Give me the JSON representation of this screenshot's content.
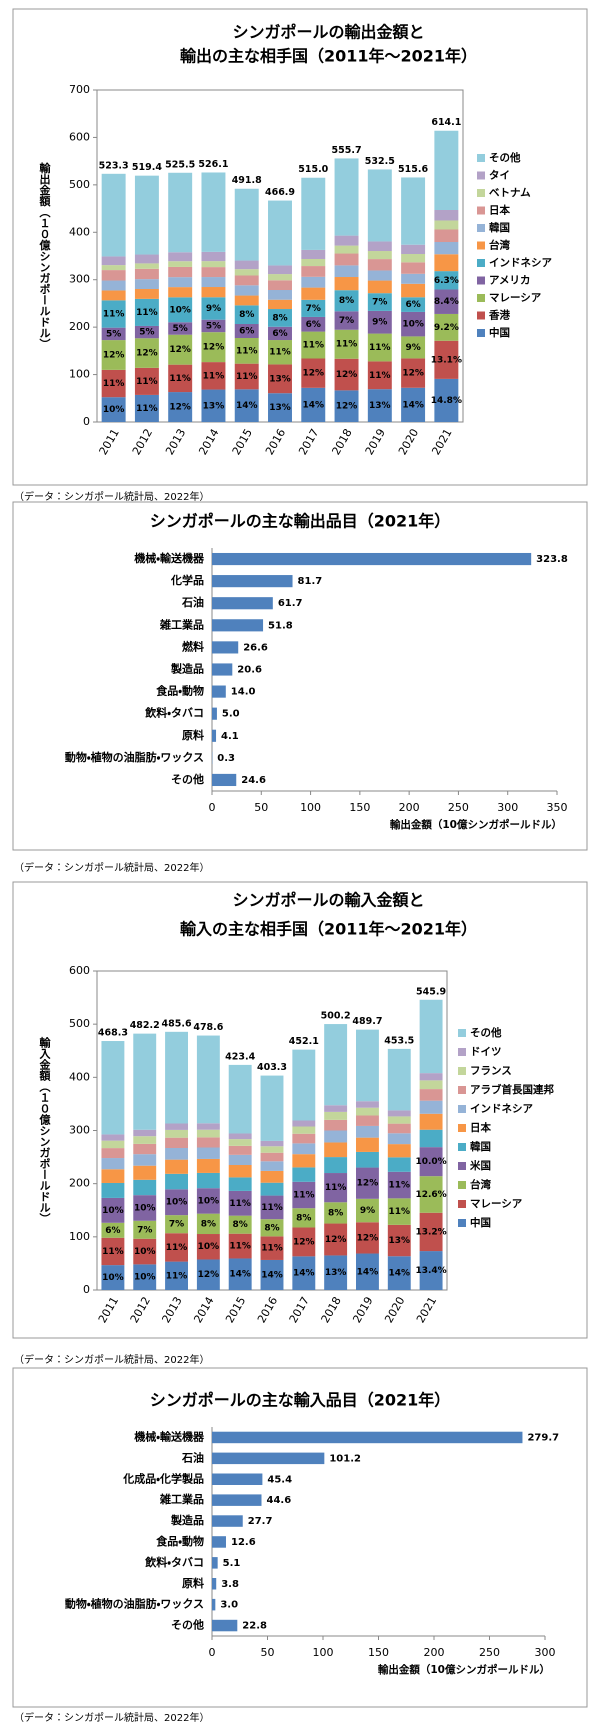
{
  "chart_data": [
    {
      "type": "stacked_bar",
      "title": [
        "シンガポールの輸出金額と",
        "輸出の主な相手国（2011年～2021年）"
      ],
      "y_label": "輸出金額（１０億シンガポールドル）",
      "categories": [
        "2011",
        "2012",
        "2013",
        "2014",
        "2015",
        "2016",
        "2017",
        "2018",
        "2019",
        "2020",
        "2021"
      ],
      "series": [
        {
          "name": "中国",
          "color": "#4F81BD",
          "values": [
            52.3,
            57.1,
            63.1,
            68.4,
            68.9,
            60.7,
            72.1,
            66.7,
            69.2,
            72.2,
            90.9
          ],
          "share_labels": [
            "10%",
            "11%",
            "12%",
            "13%",
            "14%",
            "13%",
            "14%",
            "12%",
            "13%",
            "14%",
            "14.8%"
          ]
        },
        {
          "name": "香港",
          "color": "#C0504D",
          "values": [
            57.6,
            57.1,
            57.8,
            57.9,
            54.1,
            60.7,
            61.8,
            66.7,
            58.6,
            61.9,
            80.4
          ],
          "share_labels": [
            "11%",
            "11%",
            "11%",
            "11%",
            "11%",
            "13%",
            "12%",
            "12%",
            "11%",
            "12%",
            "13.1%"
          ]
        },
        {
          "name": "マレーシア",
          "color": "#9BBB59",
          "values": [
            62.8,
            62.3,
            63.1,
            63.1,
            54.1,
            51.4,
            56.7,
            61.1,
            58.6,
            46.4,
            56.5
          ],
          "share_labels": [
            "12%",
            "12%",
            "12%",
            "12%",
            "11%",
            "11%",
            "11%",
            "11%",
            "11%",
            "9%",
            "9.2%"
          ]
        },
        {
          "name": "アメリカ",
          "color": "#8064A2",
          "values": [
            26.2,
            26.0,
            26.3,
            26.3,
            29.5,
            28.0,
            30.9,
            38.9,
            47.9,
            51.6,
            51.6
          ],
          "share_labels": [
            "5%",
            "5%",
            "5%",
            "5%",
            "6%",
            "6%",
            "6%",
            "7%",
            "9%",
            "10%",
            "8.4%"
          ]
        },
        {
          "name": "インドネシア",
          "color": "#4BACC6",
          "values": [
            57.6,
            57.1,
            52.6,
            47.3,
            39.3,
            37.4,
            36.1,
            44.5,
            37.3,
            30.9,
            38.7
          ],
          "share_labels": [
            "11%",
            "11%",
            "10%",
            "9%",
            "8%",
            "8%",
            "7%",
            "8%",
            "7%",
            "6%",
            "6.3%"
          ]
        },
        {
          "name": "台湾",
          "color": "#F79646",
          "values": [
            20.9,
            20.8,
            21.5,
            21.6,
            20.7,
            19.6,
            25.8,
            27.8,
            26.6,
            28.4,
            35.6
          ]
        },
        {
          "name": "韓国",
          "color": "#95B3D7",
          "values": [
            20.9,
            20.8,
            21.0,
            21.0,
            21.6,
            20.5,
            22.7,
            24.5,
            21.3,
            21.1,
            25.8
          ]
        },
        {
          "name": "日本",
          "color": "#D99694",
          "values": [
            22.0,
            21.8,
            21.5,
            21.0,
            20.7,
            20.5,
            22.7,
            25.0,
            24.0,
            24.2,
            26.4
          ]
        },
        {
          "name": "ベトナム",
          "color": "#C3D69B",
          "values": [
            10.5,
            11.4,
            12.1,
            12.6,
            13.3,
            13.1,
            14.9,
            16.7,
            17.0,
            17.5,
            19.0
          ]
        },
        {
          "name": "タイ",
          "color": "#B3A2C7",
          "values": [
            18.3,
            18.7,
            18.9,
            19.5,
            18.2,
            18.2,
            19.1,
            21.1,
            20.2,
            19.6,
            22.1
          ]
        },
        {
          "name": "その他",
          "color": "#93CDDD",
          "values": [
            174.2,
            166.3,
            167.6,
            167.4,
            151.4,
            136.8,
            152.2,
            162.7,
            151.8,
            141.8,
            167.1
          ]
        }
      ],
      "totals": [
        523.3,
        519.4,
        525.5,
        526.1,
        491.8,
        466.9,
        515.0,
        555.7,
        532.5,
        515.6,
        614.1
      ],
      "total_labels": [
        "523.3",
        "519.4",
        "525.5",
        "526.1",
        "491.8",
        "466.9",
        "515.0",
        "555.7",
        "532.5",
        "515.6",
        "614.1"
      ],
      "ylim": [
        0,
        700
      ],
      "yticks": [
        0,
        100,
        200,
        300,
        400,
        500,
        600,
        700
      ],
      "source": "（データ：シンガポール統計局、2022年）"
    },
    {
      "type": "hbar",
      "title": "シンガポールの主な輸出品目（2021年）",
      "categories": [
        "機械・輸送機器",
        "化学品",
        "石油",
        "雑工業品",
        "燃料",
        "製造品",
        "食品・動物",
        "飲料・タバコ",
        "原料",
        "動物・植物の油脂肪・ワックス",
        "その他"
      ],
      "values": [
        323.8,
        81.7,
        61.7,
        51.8,
        26.6,
        20.6,
        14.0,
        5.0,
        4.1,
        0.3,
        24.6
      ],
      "value_labels": [
        "323.8",
        "81.7",
        "61.7",
        "51.8",
        "26.6",
        "20.6",
        "14.0",
        "5.0",
        "4.1",
        "0.3",
        "24.6"
      ],
      "color": "#4F81BD",
      "xlim": [
        0,
        350
      ],
      "xticks": [
        0,
        50,
        100,
        150,
        200,
        250,
        300,
        350
      ],
      "x_label": "輸出金額（10億シンガポールドル）",
      "source": "（データ：シンガポール統計局、2022年）"
    },
    {
      "type": "stacked_bar",
      "title": [
        "シンガポールの輸入金額と",
        "輸入の主な相手国（2011年～2021年）"
      ],
      "y_label": "輸入金額（１０億シンガポールドル）",
      "categories": [
        "2011",
        "2012",
        "2013",
        "2014",
        "2015",
        "2016",
        "2017",
        "2018",
        "2019",
        "2020",
        "2021"
      ],
      "series": [
        {
          "name": "中国",
          "color": "#4F81BD",
          "values": [
            46.8,
            48.2,
            53.4,
            57.4,
            59.3,
            56.5,
            63.3,
            65.0,
            68.6,
            63.5,
            73.2
          ],
          "share_labels": [
            "10%",
            "10%",
            "11%",
            "12%",
            "14%",
            "14%",
            "14%",
            "13%",
            "14%",
            "14%",
            "13.4%"
          ]
        },
        {
          "name": "マレーシア",
          "color": "#C0504D",
          "values": [
            51.5,
            48.2,
            53.4,
            47.9,
            46.6,
            44.4,
            54.3,
            60.0,
            58.8,
            59.0,
            72.1
          ],
          "share_labels": [
            "11%",
            "10%",
            "11%",
            "10%",
            "11%",
            "11%",
            "12%",
            "12%",
            "12%",
            "13%",
            "13.2%"
          ]
        },
        {
          "name": "台湾",
          "color": "#9BBB59",
          "values": [
            28.1,
            33.8,
            34.0,
            38.3,
            33.9,
            32.3,
            36.2,
            40.0,
            44.1,
            49.9,
            68.8
          ],
          "share_labels": [
            "6%",
            "7%",
            "7%",
            "8%",
            "8%",
            "8%",
            "8%",
            "8%",
            "9%",
            "11%",
            "12.6%"
          ]
        },
        {
          "name": "米国",
          "color": "#8064A2",
          "values": [
            46.8,
            48.2,
            48.6,
            47.9,
            46.6,
            44.4,
            49.7,
            55.0,
            58.8,
            49.9,
            54.6
          ],
          "share_labels": [
            "10%",
            "10%",
            "10%",
            "10%",
            "11%",
            "11%",
            "11%",
            "11%",
            "12%",
            "11%",
            "10.0%"
          ]
        },
        {
          "name": "韓国",
          "color": "#4BACC6",
          "values": [
            28.1,
            28.9,
            29.1,
            28.7,
            25.4,
            24.2,
            27.1,
            30.0,
            29.4,
            27.2,
            32.8
          ]
        },
        {
          "name": "日本",
          "color": "#F79646",
          "values": [
            25.8,
            26.5,
            26.7,
            26.3,
            23.3,
            22.2,
            24.9,
            27.5,
            26.9,
            24.9,
            30.0
          ]
        },
        {
          "name": "インドネシア",
          "color": "#95B3D7",
          "values": [
            21.1,
            21.7,
            21.9,
            21.5,
            19.1,
            18.1,
            20.3,
            22.5,
            22.0,
            20.4,
            24.6
          ]
        },
        {
          "name": "アラブ首長国連邦",
          "color": "#D99694",
          "values": [
            18.7,
            19.3,
            19.4,
            19.1,
            16.9,
            16.1,
            18.1,
            20.0,
            19.6,
            18.1,
            21.8
          ]
        },
        {
          "name": "フランス",
          "color": "#C3D69B",
          "values": [
            14.0,
            14.5,
            14.6,
            14.4,
            12.7,
            12.1,
            13.6,
            15.0,
            14.7,
            13.6,
            16.4
          ]
        },
        {
          "name": "ドイツ",
          "color": "#B3A2C7",
          "values": [
            11.7,
            12.1,
            12.1,
            12.0,
            10.6,
            10.1,
            11.3,
            12.5,
            12.2,
            11.3,
            13.6
          ]
        },
        {
          "name": "その他",
          "color": "#93CDDD",
          "values": [
            175.7,
            180.8,
            172.4,
            165.1,
            129.0,
            122.9,
            133.3,
            152.7,
            134.6,
            115.7,
            138.0
          ]
        }
      ],
      "totals": [
        468.3,
        482.2,
        485.6,
        478.6,
        423.4,
        403.3,
        452.1,
        500.2,
        489.7,
        453.5,
        545.9
      ],
      "total_labels": [
        "468.3",
        "482.2",
        "485.6",
        "478.6",
        "423.4",
        "403.3",
        "452.1",
        "500.2",
        "489.7",
        "453.5",
        "545.9"
      ],
      "ylim": [
        0,
        600
      ],
      "yticks": [
        0,
        100,
        200,
        300,
        400,
        500,
        600
      ],
      "source": "（データ：シンガポール統計局、2022年）"
    },
    {
      "type": "hbar",
      "title": "シンガポールの主な輸入品目（2021年）",
      "categories": [
        "機械・輸送機器",
        "石油",
        "化成品・化学製品",
        "雑工業品",
        "製造品",
        "食品・動物",
        "飲料・タバコ",
        "原料",
        "動物・植物の油脂肪・ワックス",
        "その他"
      ],
      "values": [
        279.7,
        101.2,
        45.4,
        44.6,
        27.7,
        12.6,
        5.1,
        3.8,
        3.0,
        22.8
      ],
      "value_labels": [
        "279.7",
        "101.2",
        "45.4",
        "44.6",
        "27.7",
        "12.6",
        "5.1",
        "3.8",
        "3.0",
        "22.8"
      ],
      "color": "#4F81BD",
      "xlim": [
        0,
        300
      ],
      "xticks": [
        0,
        50,
        100,
        150,
        200,
        250,
        300
      ],
      "x_label": "輸出金額（10億シンガポールドル）",
      "source": "（データ：シンガポール統計局、2022年）"
    }
  ]
}
